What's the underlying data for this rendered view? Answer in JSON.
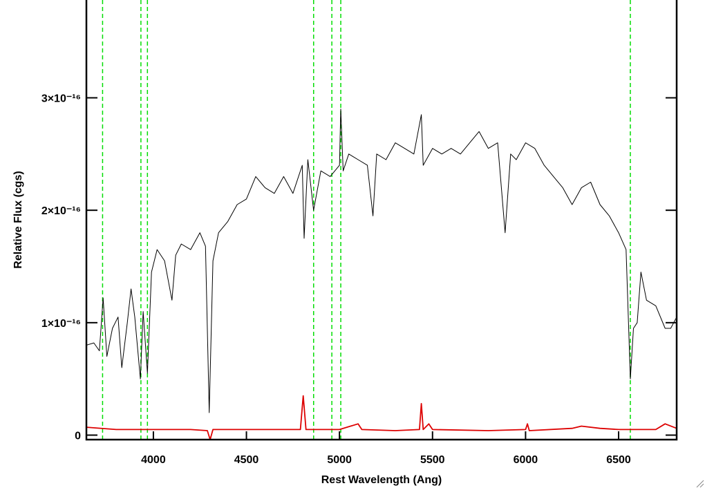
{
  "chart_data": {
    "type": "line",
    "x_label": "Rest Wavelength (Ang)",
    "y_label": "Relative Flux (cgs)",
    "xlim": [
      3640,
      6812
    ],
    "ylim": [
      -4e-18,
      3.87e-16
    ],
    "xticks": [
      4000,
      4500,
      5000,
      5500,
      6000,
      6500
    ],
    "yticks": [
      0,
      {
        "value": 1e-16,
        "label": "1×10⁻¹⁶"
      },
      {
        "value": 2e-16,
        "label": "2×10⁻¹⁶"
      },
      {
        "value": 3e-16,
        "label": "3×10⁻¹⁶"
      }
    ],
    "vlines": {
      "color": "#00dd00",
      "values": [
        3727,
        3933,
        3968,
        4861,
        4959,
        5007,
        6563
      ]
    },
    "series": [
      {
        "color": "#000000",
        "x": [
          3640,
          3680,
          3710,
          3730,
          3750,
          3780,
          3810,
          3830,
          3860,
          3880,
          3900,
          3930,
          3945,
          3968,
          3990,
          4020,
          4060,
          4100,
          4120,
          4150,
          4200,
          4250,
          4280,
          4300,
          4320,
          4350,
          4400,
          4450,
          4500,
          4550,
          4600,
          4650,
          4700,
          4750,
          4800,
          4810,
          4830,
          4861,
          4900,
          4950,
          5000,
          5007,
          5020,
          5050,
          5100,
          5150,
          5180,
          5200,
          5250,
          5300,
          5350,
          5400,
          5440,
          5450,
          5500,
          5550,
          5600,
          5650,
          5700,
          5750,
          5800,
          5850,
          5890,
          5920,
          5950,
          6000,
          6050,
          6100,
          6150,
          6200,
          6250,
          6300,
          6350,
          6400,
          6450,
          6500,
          6540,
          6563,
          6580,
          6600,
          6620,
          6650,
          6700,
          6750,
          6780,
          6812
        ],
        "values": [
          8e-17,
          8.2e-17,
          7.5e-17,
          1.22e-16,
          7e-17,
          9.5e-17,
          1.05e-16,
          6e-17,
          1e-16,
          1.3e-16,
          1.05e-16,
          5e-17,
          1.1e-16,
          5.5e-17,
          1.45e-16,
          1.65e-16,
          1.55e-16,
          1.2e-16,
          1.6e-16,
          1.7e-16,
          1.65e-16,
          1.8e-16,
          1.68e-16,
          2e-17,
          1.55e-16,
          1.8e-16,
          1.9e-16,
          2.05e-16,
          2.1e-16,
          2.3e-16,
          2.2e-16,
          2.15e-16,
          2.3e-16,
          2.15e-16,
          2.4e-16,
          1.75e-16,
          2.45e-16,
          2e-16,
          2.35e-16,
          2.3e-16,
          2.4e-16,
          2.9e-16,
          2.35e-16,
          2.5e-16,
          2.45e-16,
          2.4e-16,
          1.95e-16,
          2.5e-16,
          2.45e-16,
          2.6e-16,
          2.55e-16,
          2.5e-16,
          2.85e-16,
          2.4e-16,
          2.55e-16,
          2.5e-16,
          2.55e-16,
          2.5e-16,
          2.6e-16,
          2.7e-16,
          2.55e-16,
          2.6e-16,
          1.8e-16,
          2.5e-16,
          2.45e-16,
          2.6e-16,
          2.55e-16,
          2.4e-16,
          2.3e-16,
          2.2e-16,
          2.05e-16,
          2.2e-16,
          2.25e-16,
          2.05e-16,
          1.95e-16,
          1.8e-16,
          1.65e-16,
          5e-17,
          9.5e-17,
          1e-16,
          1.45e-16,
          1.2e-16,
          1.15e-16,
          9.5e-17,
          9.5e-17,
          1.05e-16
        ]
      },
      {
        "color": "#dd0000",
        "x": [
          3640,
          3800,
          4000,
          4200,
          4290,
          4305,
          4320,
          4500,
          4790,
          4805,
          4820,
          5000,
          5100,
          5120,
          5300,
          5430,
          5440,
          5450,
          5480,
          5500,
          5800,
          6000,
          6010,
          6020,
          6250,
          6300,
          6400,
          6500,
          6700,
          6750,
          6812
        ],
        "values": [
          7e-18,
          5e-18,
          5e-18,
          5e-18,
          4e-18,
          -4e-18,
          5e-18,
          5e-18,
          5e-18,
          3.5e-17,
          5e-18,
          5e-18,
          1e-17,
          5e-18,
          4e-18,
          5e-18,
          2.8e-17,
          5e-18,
          1e-17,
          5e-18,
          4e-18,
          5e-18,
          1e-17,
          4e-18,
          6e-18,
          8e-18,
          6e-18,
          5e-18,
          5e-18,
          1e-17,
          6e-18
        ]
      }
    ]
  }
}
